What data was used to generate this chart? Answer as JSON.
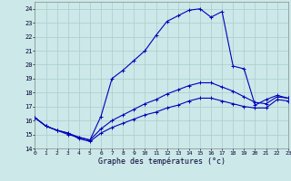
{
  "title": "",
  "xlabel": "Graphe des températures (°c)",
  "background_color": "#cce8e8",
  "grid_color": "#aacccc",
  "line_color": "#0000bb",
  "ylim": [
    14,
    24.5
  ],
  "xlim": [
    0,
    23
  ],
  "ytick_labels": [
    "14",
    "15",
    "16",
    "17",
    "18",
    "19",
    "20",
    "21",
    "22",
    "23",
    "24"
  ],
  "ytick_vals": [
    14,
    15,
    16,
    17,
    18,
    19,
    20,
    21,
    22,
    23,
    24
  ],
  "xtick_vals": [
    0,
    1,
    2,
    3,
    4,
    5,
    6,
    7,
    8,
    9,
    10,
    11,
    12,
    13,
    14,
    15,
    16,
    17,
    18,
    19,
    20,
    21,
    22,
    23
  ],
  "series": [
    {
      "x": [
        0,
        1,
        2,
        3,
        4,
        5,
        6,
        7,
        8,
        9,
        10,
        11,
        12,
        13,
        14,
        15,
        16,
        17,
        18,
        19,
        20,
        21,
        22,
        23
      ],
      "y": [
        16.2,
        15.6,
        15.3,
        15.0,
        14.8,
        14.6,
        16.3,
        19.0,
        19.6,
        20.3,
        21.0,
        22.1,
        23.1,
        23.5,
        23.9,
        24.0,
        23.4,
        23.8,
        19.9,
        19.7,
        17.1,
        17.5,
        17.8,
        17.6
      ]
    },
    {
      "x": [
        0,
        1,
        2,
        3,
        4,
        5,
        6,
        7,
        8,
        9,
        10,
        11,
        12,
        13,
        14,
        15,
        16,
        17,
        18,
        19,
        20,
        21,
        22,
        23
      ],
      "y": [
        16.2,
        15.6,
        15.3,
        15.1,
        14.8,
        14.6,
        15.4,
        16.0,
        16.4,
        16.8,
        17.2,
        17.5,
        17.9,
        18.2,
        18.5,
        18.7,
        18.7,
        18.4,
        18.1,
        17.7,
        17.3,
        17.2,
        17.7,
        17.6
      ]
    },
    {
      "x": [
        0,
        1,
        2,
        3,
        4,
        5,
        6,
        7,
        8,
        9,
        10,
        11,
        12,
        13,
        14,
        15,
        16,
        17,
        18,
        19,
        20,
        21,
        22,
        23
      ],
      "y": [
        16.2,
        15.6,
        15.3,
        15.1,
        14.7,
        14.5,
        15.1,
        15.5,
        15.8,
        16.1,
        16.4,
        16.6,
        16.9,
        17.1,
        17.4,
        17.6,
        17.6,
        17.4,
        17.2,
        17.0,
        16.9,
        16.9,
        17.5,
        17.4
      ]
    }
  ]
}
